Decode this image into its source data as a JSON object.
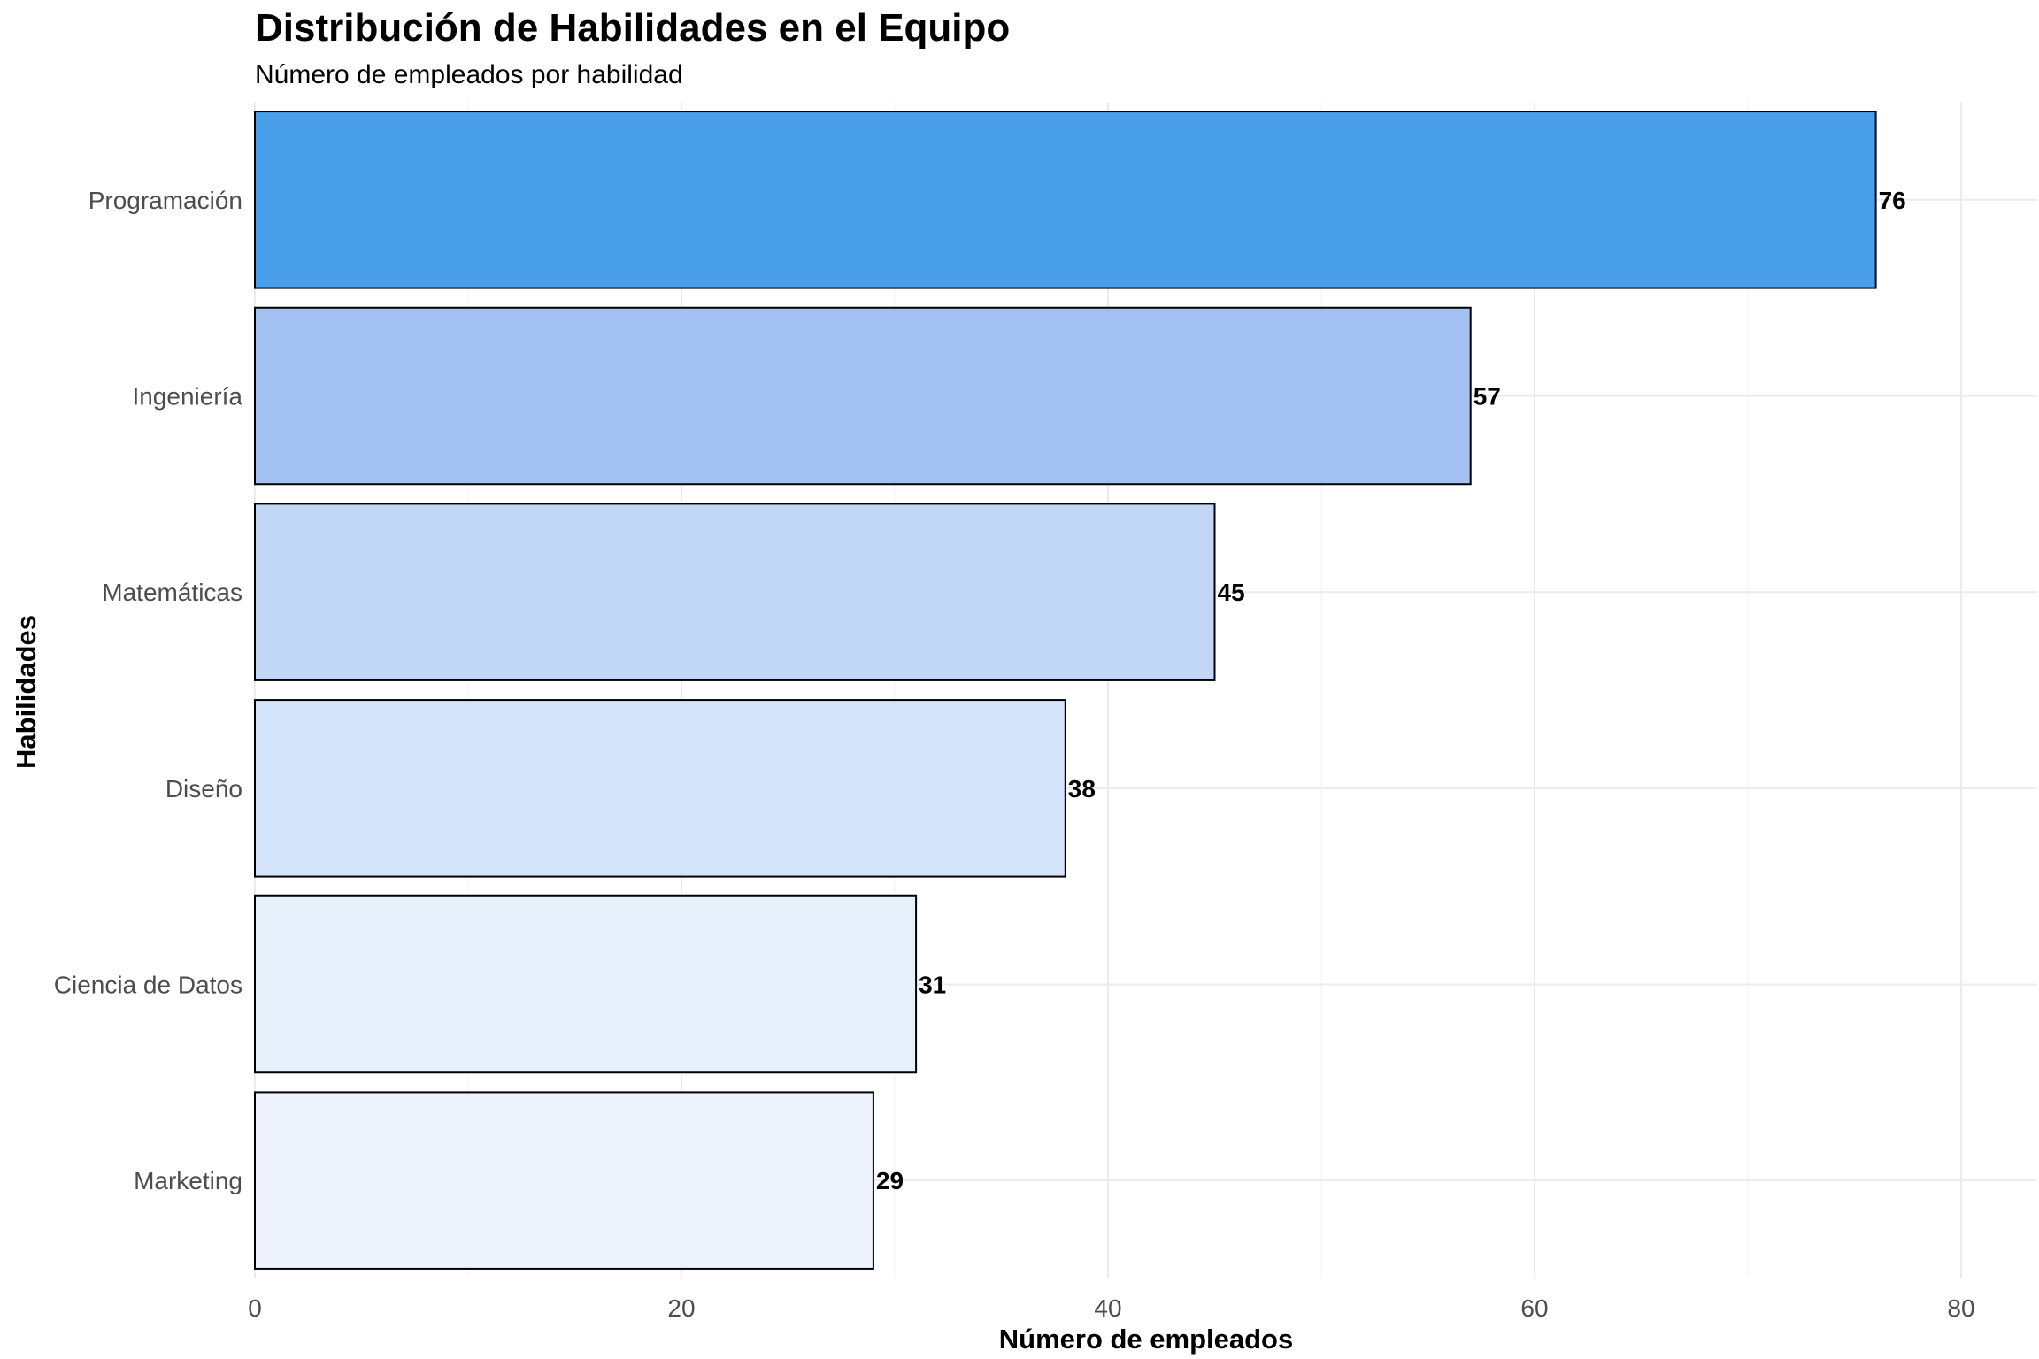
{
  "chart_data": {
    "type": "bar",
    "orientation": "horizontal",
    "title": "Distribución de Habilidades en el Equipo",
    "subtitle": "Número de empleados por habilidad",
    "xlabel": "Número de empleados",
    "ylabel": "Habilidades",
    "xlim": [
      0,
      84
    ],
    "x_ticks": [
      0,
      20,
      40,
      60,
      80
    ],
    "grid": true,
    "legend": "none",
    "categories": [
      "Programación",
      "Ingeniería",
      "Matemáticas",
      "Diseño",
      "Ciencia de Datos",
      "Marketing"
    ],
    "values": [
      76,
      57,
      45,
      38,
      31,
      29
    ],
    "colors": [
      "#4a9fea",
      "#a2c0f2",
      "#c2d7f7",
      "#d4e4fa",
      "#e6f1fc",
      "#edf4fd"
    ]
  }
}
